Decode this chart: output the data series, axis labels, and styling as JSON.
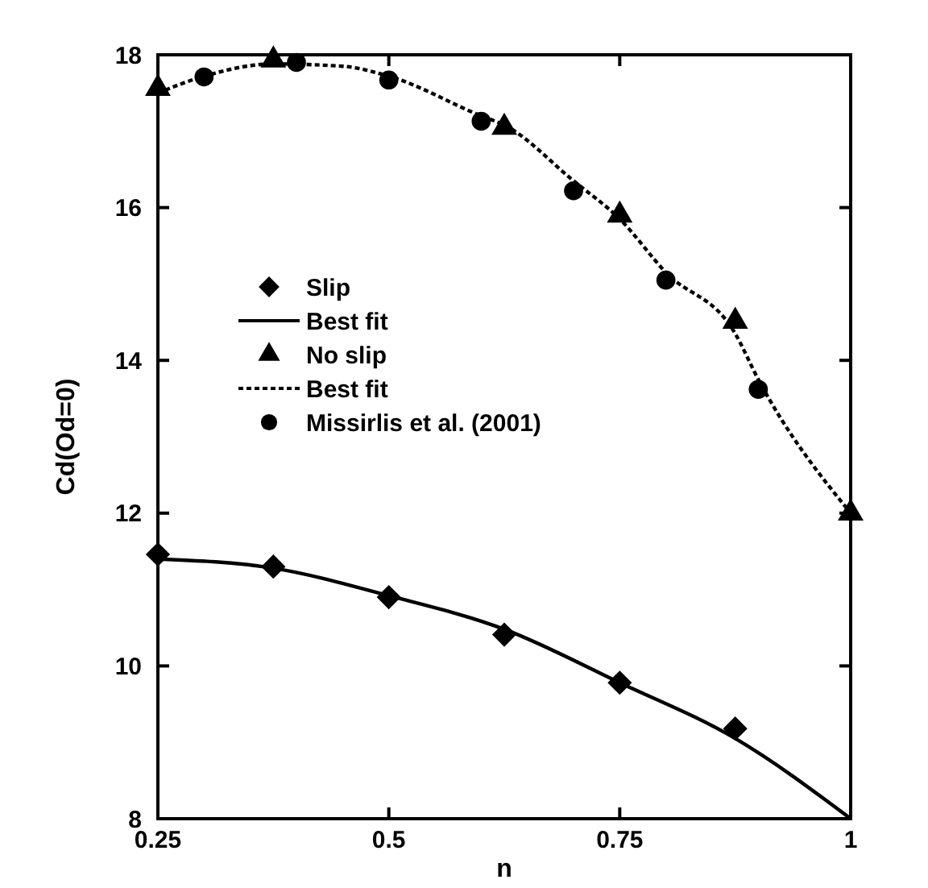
{
  "chart_data": {
    "type": "line",
    "xlabel": "n",
    "ylabel": "Cd(Od=0)",
    "xlim": [
      0.25,
      1
    ],
    "xticks": [
      0.25,
      0.5,
      0.75,
      1
    ],
    "ylim": [
      8,
      18
    ],
    "yticks": [
      8,
      10,
      12,
      14,
      16,
      18
    ],
    "grid": false,
    "legend": "left",
    "series": [
      {
        "name": "Slip",
        "type": "scatter",
        "marker": "diamond",
        "color": "#000000",
        "x": [
          0.25,
          0.375,
          0.5,
          0.625,
          0.75,
          0.875
        ],
        "values": [
          11.46,
          11.3,
          10.9,
          10.41,
          9.78,
          9.18
        ]
      },
      {
        "name": "Best fit",
        "marker": "none",
        "line_style": "solid",
        "color": "#000000",
        "x": [
          0.25,
          0.375,
          0.5,
          0.625,
          0.75,
          0.875,
          1.0
        ],
        "values": [
          11.4,
          11.28,
          10.92,
          10.48,
          9.78,
          9.05,
          8.0
        ]
      },
      {
        "name": "No slip",
        "type": "scatter",
        "marker": "triangle",
        "color": "#000000",
        "x": [
          0.25,
          0.375,
          0.625,
          0.75,
          0.875,
          1.0
        ],
        "values": [
          17.56,
          17.93,
          17.05,
          15.9,
          14.51,
          12.0
        ]
      },
      {
        "name": "Best fit",
        "marker": "none",
        "line_style": "dotted",
        "color": "#000000",
        "x": [
          0.25,
          0.3,
          0.375,
          0.45,
          0.5,
          0.6,
          0.625,
          0.7,
          0.75,
          0.8,
          0.875,
          0.9,
          1.0
        ],
        "values": [
          17.5,
          17.72,
          17.88,
          17.85,
          17.72,
          17.2,
          17.08,
          16.35,
          15.85,
          15.15,
          14.35,
          13.75,
          12.0
        ]
      },
      {
        "name": "Missirlis et al. (2001)",
        "type": "scatter",
        "marker": "circle",
        "color": "#000000",
        "x": [
          0.3,
          0.4,
          0.5,
          0.6,
          0.7,
          0.8,
          0.9
        ],
        "values": [
          17.71,
          17.9,
          17.67,
          17.13,
          16.22,
          15.05,
          13.62
        ]
      }
    ]
  }
}
